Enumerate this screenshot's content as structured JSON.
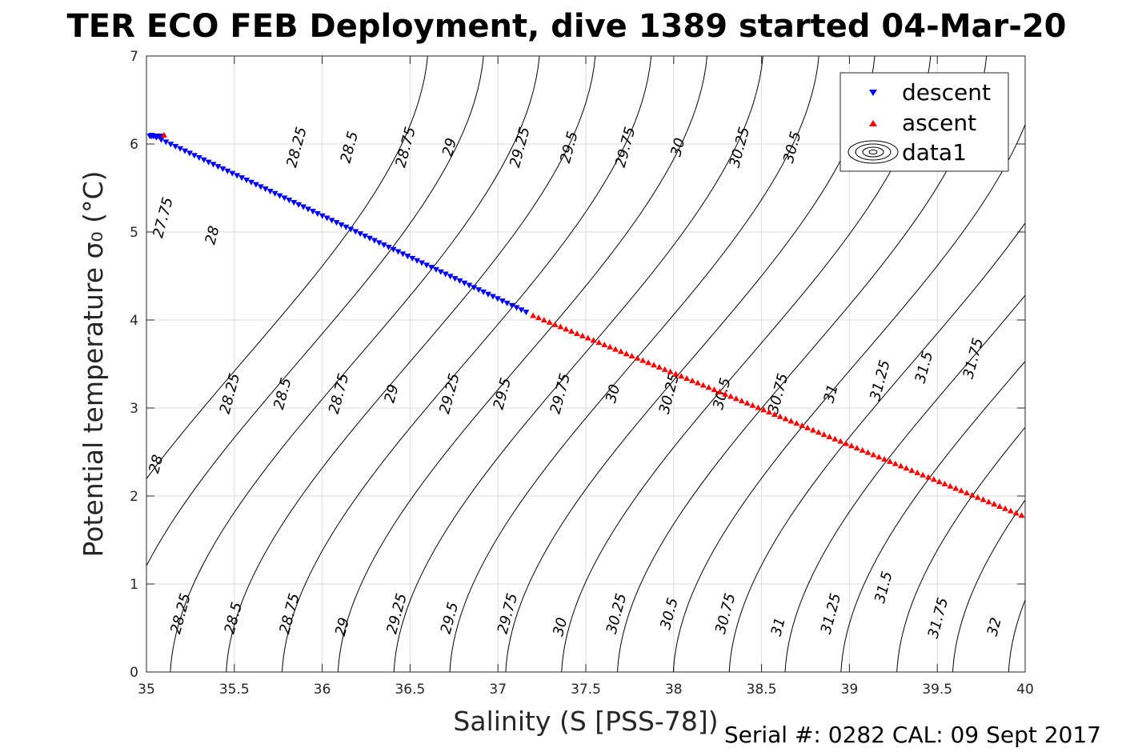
{
  "chart_data": {
    "type": "scatter",
    "title": "TER ECO FEB Deployment, dive 1389 started 04-Mar-20",
    "xlabel": "Salinity (S [PSS-78])",
    "ylabel": "Potential temperature σ₀ (°C)",
    "xlim": [
      35,
      40
    ],
    "ylim": [
      0,
      7
    ],
    "x_ticks": [
      "35",
      "35.5",
      "36",
      "36.5",
      "37",
      "37.5",
      "38",
      "38.5",
      "39",
      "39.5",
      "40"
    ],
    "y_ticks": [
      "0",
      "1",
      "2",
      "3",
      "4",
      "5",
      "6",
      "7"
    ],
    "grid": true,
    "legend_position": "top-right",
    "legend": [
      "descent",
      "ascent",
      "data1"
    ],
    "series": [
      {
        "name": "descent",
        "color": "#0000ff",
        "marker": "triangle-down",
        "x_start": 35.03,
        "x_end": 37.16,
        "y_start": 6.1,
        "y_end": 4.09,
        "count": 80
      },
      {
        "name": "ascent",
        "color": "#ff0000",
        "marker": "triangle-up",
        "x_start": 37.2,
        "x_end": 39.98,
        "y_start": 4.05,
        "y_end": 1.78,
        "count": 90
      }
    ],
    "contours": {
      "levels": [
        "27.75",
        "28",
        "28.25",
        "28.5",
        "28.75",
        "29",
        "29.25",
        "29.5",
        "29.75",
        "30",
        "30.25",
        "30.5",
        "30.75",
        "31",
        "31.25",
        "31.5",
        "31.75",
        "32"
      ],
      "label_points": [
        {
          "text": "27.75",
          "x": 35.12,
          "y": 5.15
        },
        {
          "text": "28",
          "x": 35.4,
          "y": 4.95
        },
        {
          "text": "28.25",
          "x": 35.88,
          "y": 5.95
        },
        {
          "text": "28.5",
          "x": 36.18,
          "y": 5.95
        },
        {
          "text": "28.75",
          "x": 36.5,
          "y": 5.95
        },
        {
          "text": "29",
          "x": 36.75,
          "y": 5.95
        },
        {
          "text": "29.25",
          "x": 37.15,
          "y": 5.95
        },
        {
          "text": "29.5",
          "x": 37.43,
          "y": 5.95
        },
        {
          "text": "29.75",
          "x": 37.75,
          "y": 5.95
        },
        {
          "text": "30",
          "x": 38.05,
          "y": 5.95
        },
        {
          "text": "30.25",
          "x": 38.4,
          "y": 5.95
        },
        {
          "text": "30.5",
          "x": 38.7,
          "y": 5.95
        },
        {
          "text": "28.25",
          "x": 35.5,
          "y": 3.15
        },
        {
          "text": "28.5",
          "x": 35.8,
          "y": 3.15
        },
        {
          "text": "28.75",
          "x": 36.12,
          "y": 3.15
        },
        {
          "text": "29",
          "x": 36.42,
          "y": 3.15
        },
        {
          "text": "29.25",
          "x": 36.75,
          "y": 3.15
        },
        {
          "text": "29.5",
          "x": 37.05,
          "y": 3.15
        },
        {
          "text": "29.75",
          "x": 37.38,
          "y": 3.15
        },
        {
          "text": "30",
          "x": 37.68,
          "y": 3.15
        },
        {
          "text": "30.25",
          "x": 38.0,
          "y": 3.15
        },
        {
          "text": "30.5",
          "x": 38.3,
          "y": 3.15
        },
        {
          "text": "30.75",
          "x": 38.62,
          "y": 3.15
        },
        {
          "text": "31",
          "x": 38.92,
          "y": 3.15
        },
        {
          "text": "31.25",
          "x": 39.2,
          "y": 3.3
        },
        {
          "text": "31.5",
          "x": 39.45,
          "y": 3.45
        },
        {
          "text": "31.75",
          "x": 39.73,
          "y": 3.55
        },
        {
          "text": "28",
          "x": 35.08,
          "y": 2.35
        },
        {
          "text": "28.25",
          "x": 35.22,
          "y": 0.65
        },
        {
          "text": "28.5",
          "x": 35.52,
          "y": 0.6
        },
        {
          "text": "28.75",
          "x": 35.84,
          "y": 0.65
        },
        {
          "text": "29",
          "x": 36.14,
          "y": 0.5
        },
        {
          "text": "29.25",
          "x": 36.45,
          "y": 0.65
        },
        {
          "text": "29.5",
          "x": 36.75,
          "y": 0.6
        },
        {
          "text": "29.75",
          "x": 37.08,
          "y": 0.65
        },
        {
          "text": "30",
          "x": 37.38,
          "y": 0.5
        },
        {
          "text": "30.25",
          "x": 37.7,
          "y": 0.65
        },
        {
          "text": "30.5",
          "x": 38.0,
          "y": 0.65
        },
        {
          "text": "30.75",
          "x": 38.32,
          "y": 0.65
        },
        {
          "text": "31",
          "x": 38.62,
          "y": 0.5
        },
        {
          "text": "31.25",
          "x": 38.92,
          "y": 0.65
        },
        {
          "text": "31.5",
          "x": 39.22,
          "y": 0.95
        },
        {
          "text": "31.75",
          "x": 39.53,
          "y": 0.6
        },
        {
          "text": "32",
          "x": 39.85,
          "y": 0.5
        }
      ]
    }
  },
  "footer": {
    "serial": "Serial #: 0282  CAL: 09 Sept 2017"
  }
}
